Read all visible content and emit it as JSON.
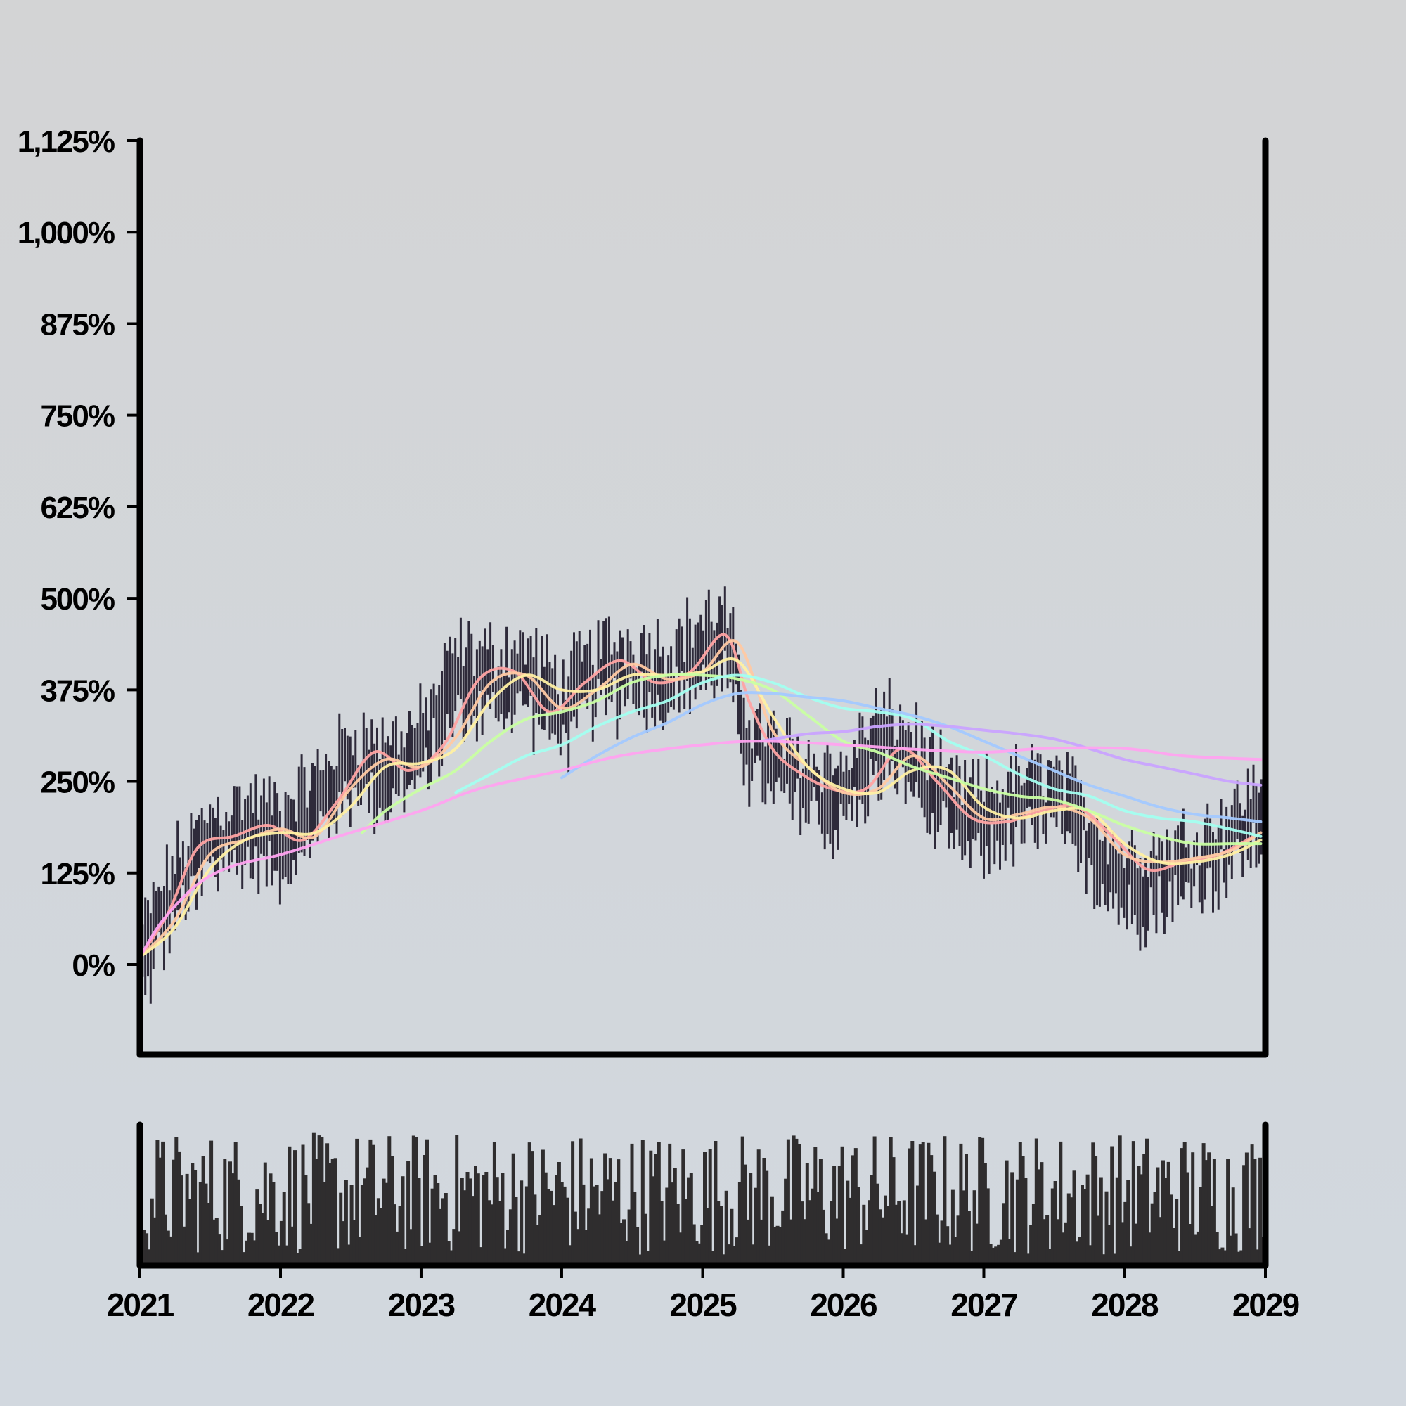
{
  "chart_data": {
    "type": "candlestick",
    "title": "",
    "xlabel": "",
    "ylabel": "",
    "x_range": [
      "2021-01-01",
      "2029-01-01"
    ],
    "ylim": [
      -100,
      1125
    ],
    "y_ticks": [
      0,
      125,
      250,
      375,
      500,
      625,
      750,
      875,
      1000,
      1125
    ],
    "y_tick_labels": [
      "0%",
      "125%",
      "250%",
      "375%",
      "500%",
      "625%",
      "750%",
      "875%",
      "1,000%",
      "1,125%"
    ],
    "x_ticks": [
      "2021",
      "2022",
      "2023",
      "2024",
      "2025",
      "2026",
      "2027",
      "2028",
      "2029"
    ],
    "grid": false,
    "legend": "none",
    "bar_color": "#2e2a3a",
    "volume_color": "#2f2d2e",
    "price_trend": {
      "x": [
        "2021-01-01",
        "2021-04-01",
        "2021-07-01",
        "2021-10-01",
        "2022-01-01",
        "2022-04-01",
        "2022-07-01",
        "2022-10-01",
        "2023-01-01",
        "2023-04-01",
        "2023-07-01",
        "2023-10-01",
        "2024-01-01",
        "2024-04-01",
        "2024-07-01",
        "2024-10-01",
        "2025-01-01",
        "2025-03-01",
        "2025-05-01",
        "2025-07-01",
        "2025-10-01",
        "2026-01-01",
        "2026-04-01",
        "2026-07-01",
        "2026-10-01",
        "2027-01-01",
        "2027-04-01",
        "2027-07-01",
        "2027-10-01",
        "2028-01-01",
        "2028-04-01",
        "2028-07-01",
        "2028-10-01",
        "2029-01-01"
      ],
      "y": [
        0,
        100,
        165,
        185,
        175,
        215,
        275,
        265,
        290,
        390,
        385,
        395,
        345,
        395,
        405,
        395,
        430,
        440,
        300,
        270,
        245,
        225,
        305,
        280,
        205,
        195,
        215,
        225,
        170,
        110,
        120,
        140,
        170,
        215
      ]
    },
    "moving_averages": [
      {
        "color": "#ffa3a3",
        "window": 5,
        "x": [
          "2021-01-01",
          "2021-03-15",
          "2021-06-01",
          "2021-09-01",
          "2021-12-01",
          "2022-03-01",
          "2022-06-01",
          "2022-09-01",
          "2022-12-01",
          "2023-03-01",
          "2023-06-01",
          "2023-09-01",
          "2023-12-01",
          "2024-03-01",
          "2024-06-01",
          "2024-09-01",
          "2024-12-01",
          "2025-03-01",
          "2025-05-01",
          "2025-07-01",
          "2025-09-01",
          "2025-12-01",
          "2026-03-01",
          "2026-06-01",
          "2026-09-01",
          "2026-12-01",
          "2027-03-01",
          "2027-06-01",
          "2027-09-01",
          "2027-12-01",
          "2028-03-01",
          "2028-06-01",
          "2028-09-01",
          "2028-12-01"
        ],
        "y": [
          10,
          70,
          160,
          175,
          190,
          170,
          225,
          290,
          265,
          300,
          390,
          400,
          345,
          385,
          415,
          385,
          400,
          450,
          360,
          295,
          265,
          240,
          240,
          295,
          250,
          200,
          195,
          210,
          215,
          175,
          130,
          140,
          150,
          175
        ]
      },
      {
        "color": "#ffc9a3",
        "window": 10,
        "x": [
          "2021-01-01",
          "2021-04-01",
          "2021-07-01",
          "2021-10-01",
          "2022-01-01",
          "2022-04-01",
          "2022-07-01",
          "2022-10-01",
          "2023-01-01",
          "2023-04-01",
          "2023-07-01",
          "2023-10-01",
          "2024-01-01",
          "2024-04-01",
          "2024-07-01",
          "2024-10-01",
          "2025-01-01",
          "2025-04-01",
          "2025-07-01",
          "2025-10-01",
          "2026-01-01",
          "2026-04-01",
          "2026-07-01",
          "2026-10-01",
          "2027-01-01",
          "2027-04-01",
          "2027-07-01",
          "2027-10-01",
          "2028-01-01",
          "2028-04-01",
          "2028-07-01",
          "2028-10-01",
          "2028-12-20"
        ],
        "y": [
          10,
          60,
          150,
          170,
          185,
          175,
          240,
          280,
          270,
          310,
          385,
          395,
          350,
          375,
          410,
          390,
          400,
          440,
          320,
          270,
          235,
          240,
          285,
          245,
          200,
          205,
          215,
          200,
          150,
          140,
          145,
          155,
          180
        ]
      },
      {
        "color": "#fff0a3",
        "window": 20,
        "x": [
          "2021-01-01",
          "2021-04-01",
          "2021-07-01",
          "2021-10-01",
          "2022-01-01",
          "2022-04-01",
          "2022-07-01",
          "2022-10-01",
          "2023-01-01",
          "2023-04-01",
          "2023-07-01",
          "2023-10-01",
          "2024-01-01",
          "2024-04-01",
          "2024-07-01",
          "2024-10-01",
          "2025-01-01",
          "2025-04-01",
          "2025-07-01",
          "2025-10-01",
          "2026-01-01",
          "2026-04-01",
          "2026-07-01",
          "2026-10-01",
          "2027-01-01",
          "2027-04-01",
          "2027-07-01",
          "2027-10-01",
          "2028-01-01",
          "2028-04-01",
          "2028-07-01",
          "2028-10-01",
          "2028-12-20"
        ],
        "y": [
          10,
          50,
          130,
          170,
          180,
          180,
          215,
          270,
          275,
          295,
          360,
          395,
          375,
          375,
          395,
          395,
          400,
          415,
          340,
          270,
          240,
          235,
          265,
          265,
          215,
          200,
          210,
          210,
          165,
          140,
          140,
          150,
          170
        ]
      },
      {
        "color": "#c9ffa3",
        "window": 50,
        "x": [
          "2022-08-01",
          "2022-10-01",
          "2023-01-01",
          "2023-04-01",
          "2023-07-01",
          "2023-10-01",
          "2024-01-01",
          "2024-04-01",
          "2024-07-01",
          "2024-10-01",
          "2025-01-01",
          "2025-04-01",
          "2025-07-01",
          "2025-10-01",
          "2026-01-01",
          "2026-04-01",
          "2026-07-01",
          "2026-10-01",
          "2027-01-01",
          "2027-04-01",
          "2027-07-01",
          "2027-10-01",
          "2028-01-01",
          "2028-04-01",
          "2028-07-01",
          "2028-10-01",
          "2028-12-20"
        ],
        "y": [
          180,
          210,
          240,
          265,
          305,
          335,
          345,
          360,
          385,
          395,
          395,
          390,
          375,
          340,
          305,
          290,
          270,
          255,
          240,
          230,
          225,
          210,
          190,
          175,
          165,
          165,
          165
        ]
      },
      {
        "color": "#a3fff0",
        "window": 100,
        "x": [
          "2023-04-01",
          "2023-07-01",
          "2023-10-01",
          "2024-01-01",
          "2024-04-01",
          "2024-07-01",
          "2024-10-01",
          "2025-01-01",
          "2025-04-01",
          "2025-07-01",
          "2025-10-01",
          "2026-01-01",
          "2026-04-01",
          "2026-07-01",
          "2026-10-01",
          "2027-01-01",
          "2027-04-01",
          "2027-07-01",
          "2027-10-01",
          "2028-01-01",
          "2028-04-01",
          "2028-07-01",
          "2028-10-01",
          "2028-12-20"
        ],
        "y": [
          235,
          260,
          285,
          300,
          325,
          345,
          360,
          385,
          395,
          385,
          365,
          350,
          345,
          335,
          305,
          285,
          260,
          240,
          230,
          210,
          200,
          195,
          185,
          175
        ]
      },
      {
        "color": "#a3c9ff",
        "window": 200,
        "x": [
          "2024-01-01",
          "2024-04-01",
          "2024-07-01",
          "2024-10-01",
          "2025-01-01",
          "2025-04-01",
          "2025-07-01",
          "2025-10-01",
          "2026-01-01",
          "2026-04-01",
          "2026-07-01",
          "2026-10-01",
          "2027-01-01",
          "2027-04-01",
          "2027-07-01",
          "2027-10-01",
          "2028-01-01",
          "2028-04-01",
          "2028-07-01",
          "2028-10-01",
          "2028-12-20"
        ],
        "y": [
          255,
          285,
          310,
          330,
          355,
          370,
          370,
          365,
          360,
          350,
          340,
          325,
          305,
          285,
          265,
          245,
          230,
          215,
          205,
          200,
          195
        ]
      },
      {
        "color": "#c9a3ff",
        "window": 300,
        "x": [
          "2025-06-01",
          "2025-10-01",
          "2026-01-01",
          "2026-04-01",
          "2026-07-01",
          "2026-10-01",
          "2027-01-01",
          "2027-04-01",
          "2027-07-01",
          "2027-10-01",
          "2028-01-01",
          "2028-04-01",
          "2028-07-01",
          "2028-10-01",
          "2028-12-20"
        ],
        "y": [
          305,
          315,
          318,
          325,
          328,
          325,
          320,
          315,
          308,
          295,
          280,
          270,
          260,
          250,
          245
        ]
      },
      {
        "color": "#ffa3f0",
        "window": 400,
        "x": [
          "2021-01-01",
          "2021-03-01",
          "2021-06-01",
          "2021-09-01",
          "2022-01-01",
          "2022-06-01",
          "2023-01-01",
          "2023-06-01",
          "2024-01-01",
          "2024-06-01",
          "2025-01-01",
          "2025-06-01",
          "2026-01-01",
          "2026-06-01",
          "2027-01-01",
          "2027-06-01",
          "2028-01-01",
          "2028-06-01",
          "2028-12-20"
        ],
        "y": [
          10,
          60,
          110,
          135,
          150,
          175,
          210,
          240,
          265,
          285,
          300,
          305,
          300,
          295,
          290,
          295,
          295,
          285,
          280
        ]
      }
    ],
    "volume": {
      "ylim": [
        0,
        100
      ]
    }
  }
}
